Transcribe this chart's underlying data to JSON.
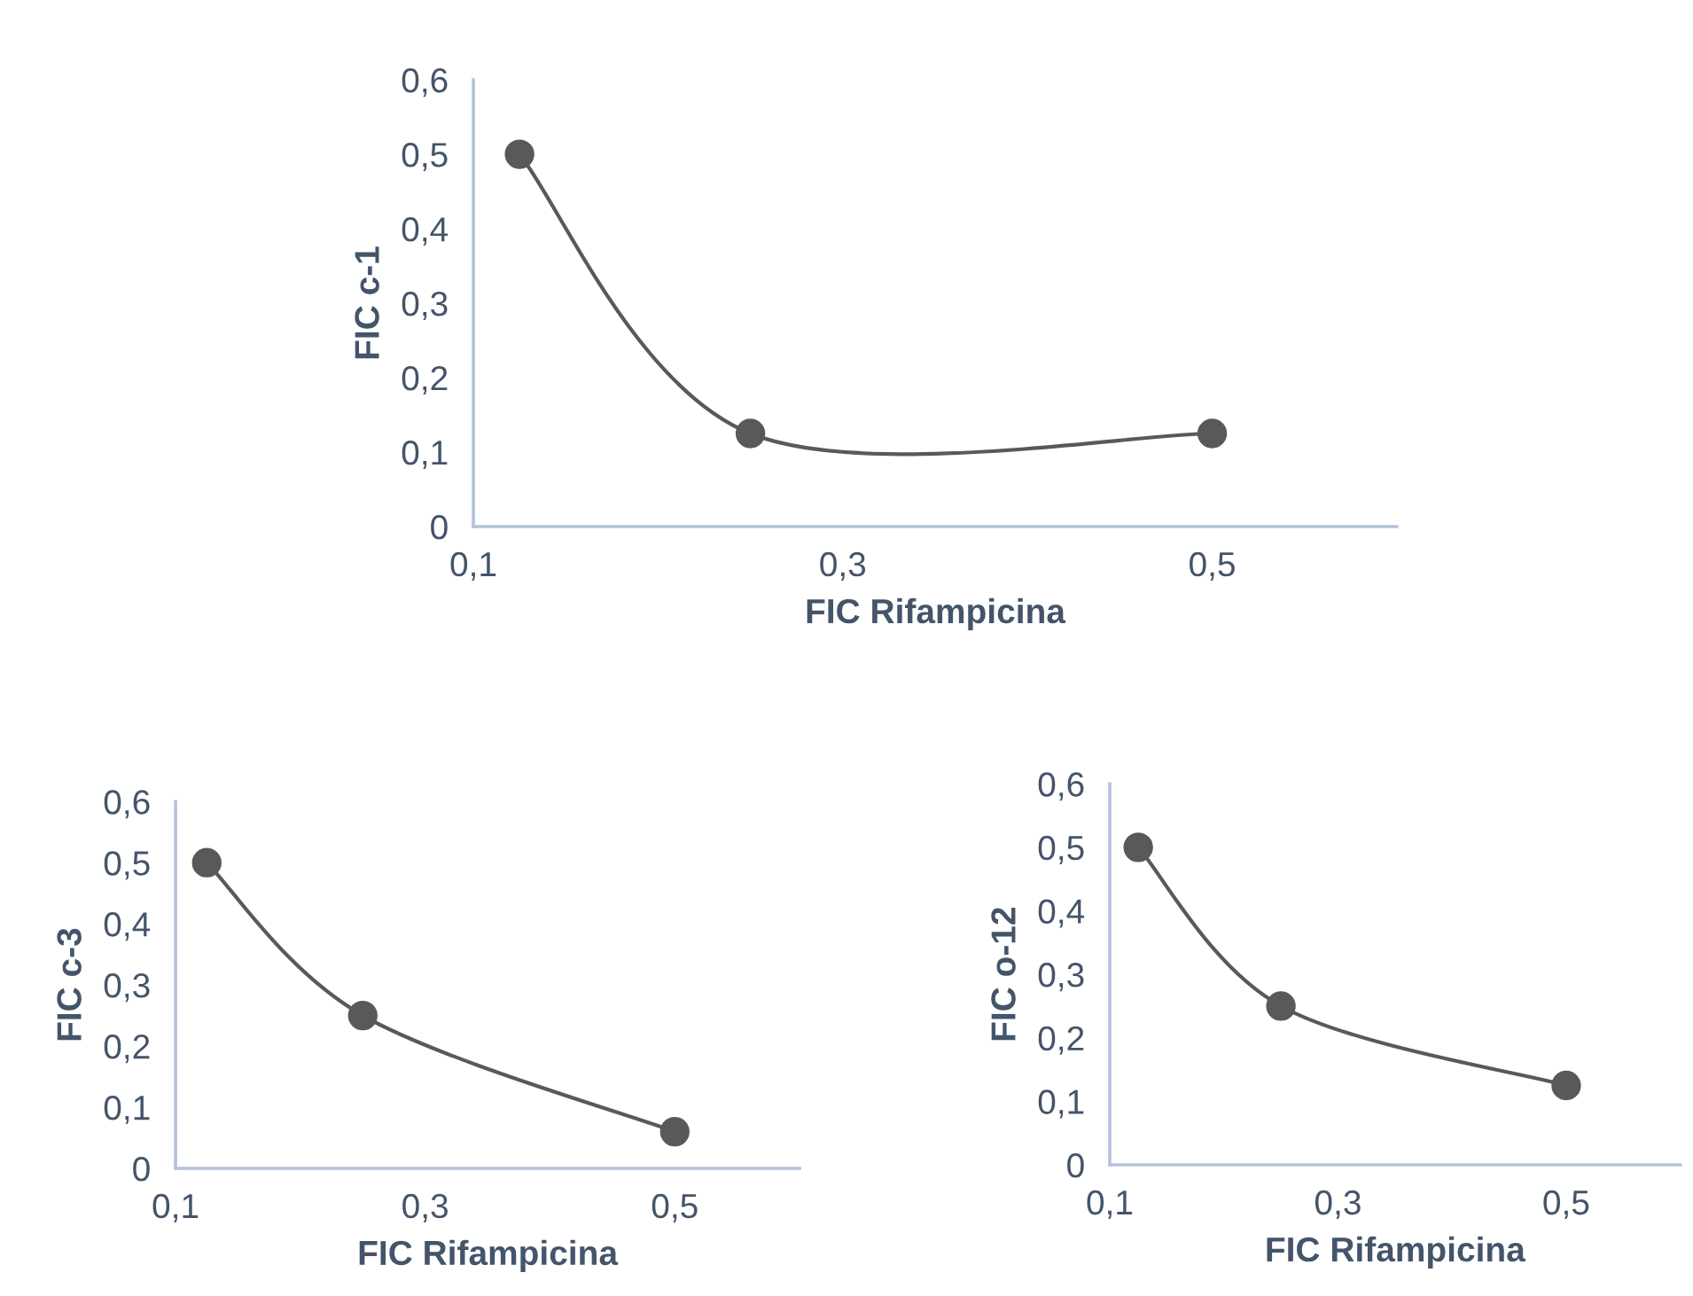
{
  "chart_data": [
    {
      "type": "line",
      "xlabel": "FIC Rifampicina",
      "ylabel": "FIC c-1",
      "x": [
        0.125,
        0.25,
        0.5
      ],
      "series": [
        {
          "color": "#595959",
          "values": [
            0.5,
            0.125,
            0.125
          ]
        }
      ],
      "xlim": [
        0.1,
        0.6
      ],
      "ylim": [
        0,
        0.6
      ],
      "xticks": [
        {
          "value": 0.1,
          "label": "0,1"
        },
        {
          "value": 0.3,
          "label": "0,3"
        },
        {
          "value": 0.5,
          "label": "0,5"
        }
      ],
      "yticks": [
        0,
        {
          "value": 0.1,
          "label": "0,1"
        },
        {
          "value": 0.2,
          "label": "0,2"
        },
        {
          "value": 0.3,
          "label": "0,3"
        },
        {
          "value": 0.4,
          "label": "0,4"
        },
        {
          "value": 0.5,
          "label": "0,5"
        },
        {
          "value": 0.6,
          "label": "0,6"
        }
      ],
      "marker": "circle",
      "line_style": "solid",
      "grid": false,
      "legend": false
    },
    {
      "type": "line",
      "xlabel": "FIC Rifampicina",
      "ylabel": "FIC c-3",
      "x": [
        0.125,
        0.25,
        0.5
      ],
      "series": [
        {
          "color": "#595959",
          "values": [
            0.5,
            0.25,
            0.06
          ]
        }
      ],
      "xlim": [
        0.1,
        0.6
      ],
      "ylim": [
        0,
        0.6
      ],
      "xticks": [
        {
          "value": 0.1,
          "label": "0,1"
        },
        {
          "value": 0.3,
          "label": "0,3"
        },
        {
          "value": 0.5,
          "label": "0,5"
        }
      ],
      "yticks": [
        0,
        {
          "value": 0.1,
          "label": "0,1"
        },
        {
          "value": 0.2,
          "label": "0,2"
        },
        {
          "value": 0.3,
          "label": "0,3"
        },
        {
          "value": 0.4,
          "label": "0,4"
        },
        {
          "value": 0.5,
          "label": "0,5"
        },
        {
          "value": 0.6,
          "label": "0,6"
        }
      ],
      "marker": "circle",
      "line_style": "solid",
      "grid": false,
      "legend": false
    },
    {
      "type": "line",
      "xlabel": "FIC Rifampicina",
      "ylabel": "FIC o-12",
      "x": [
        0.125,
        0.25,
        0.5
      ],
      "series": [
        {
          "color": "#595959",
          "values": [
            0.5,
            0.25,
            0.125
          ]
        }
      ],
      "xlim": [
        0.1,
        0.6
      ],
      "ylim": [
        0,
        0.6
      ],
      "xticks": [
        {
          "value": 0.1,
          "label": "0,1"
        },
        {
          "value": 0.3,
          "label": "0,3"
        },
        {
          "value": 0.5,
          "label": "0,5"
        }
      ],
      "yticks": [
        0,
        {
          "value": 0.1,
          "label": "0,1"
        },
        {
          "value": 0.2,
          "label": "0,2"
        },
        {
          "value": 0.3,
          "label": "0,3"
        },
        {
          "value": 0.4,
          "label": "0,4"
        },
        {
          "value": 0.5,
          "label": "0,5"
        },
        {
          "value": 0.6,
          "label": "0,6"
        }
      ],
      "marker": "circle",
      "line_style": "solid",
      "grid": false,
      "legend": false
    }
  ]
}
